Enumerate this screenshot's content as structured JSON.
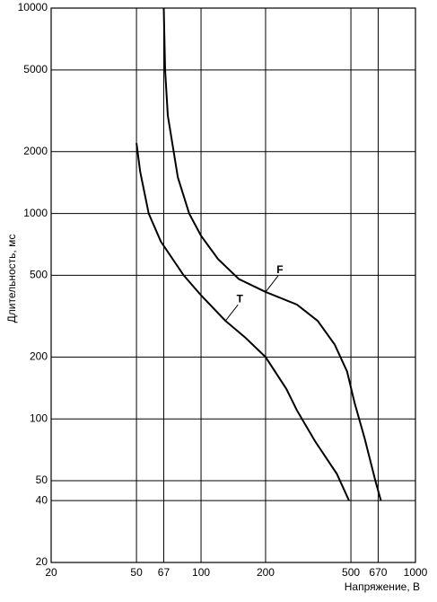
{
  "chart_data": {
    "type": "line",
    "x_label": "Напряжение, В",
    "y_label": "Длительность, мс",
    "xlog": true,
    "ylog": true,
    "grid": true,
    "xlim": [
      20,
      1000
    ],
    "ylim": [
      20,
      10000
    ],
    "xticks": [
      20,
      50,
      67,
      100,
      200,
      500,
      670,
      1000
    ],
    "yticks": [
      20,
      40,
      50,
      100,
      200,
      500,
      1000,
      2000,
      5000,
      10000
    ],
    "series": [
      {
        "name": "T",
        "color": "#000000",
        "x": [
          50,
          52,
          57,
          65,
          83,
          100,
          130,
          160,
          200,
          250,
          280,
          340,
          430,
          490
        ],
        "values": [
          2200,
          1600,
          1000,
          730,
          500,
          400,
          300,
          250,
          200,
          140,
          110,
          78,
          54,
          40
        ]
      },
      {
        "name": "F",
        "color": "#000000",
        "x": [
          67,
          68,
          70,
          78,
          88,
          100,
          120,
          150,
          200,
          280,
          350,
          420,
          480,
          520,
          580,
          650,
          690
        ],
        "values": [
          10000,
          5000,
          3000,
          1500,
          1000,
          780,
          600,
          480,
          415,
          360,
          300,
          230,
          170,
          120,
          80,
          50,
          40
        ]
      }
    ]
  }
}
